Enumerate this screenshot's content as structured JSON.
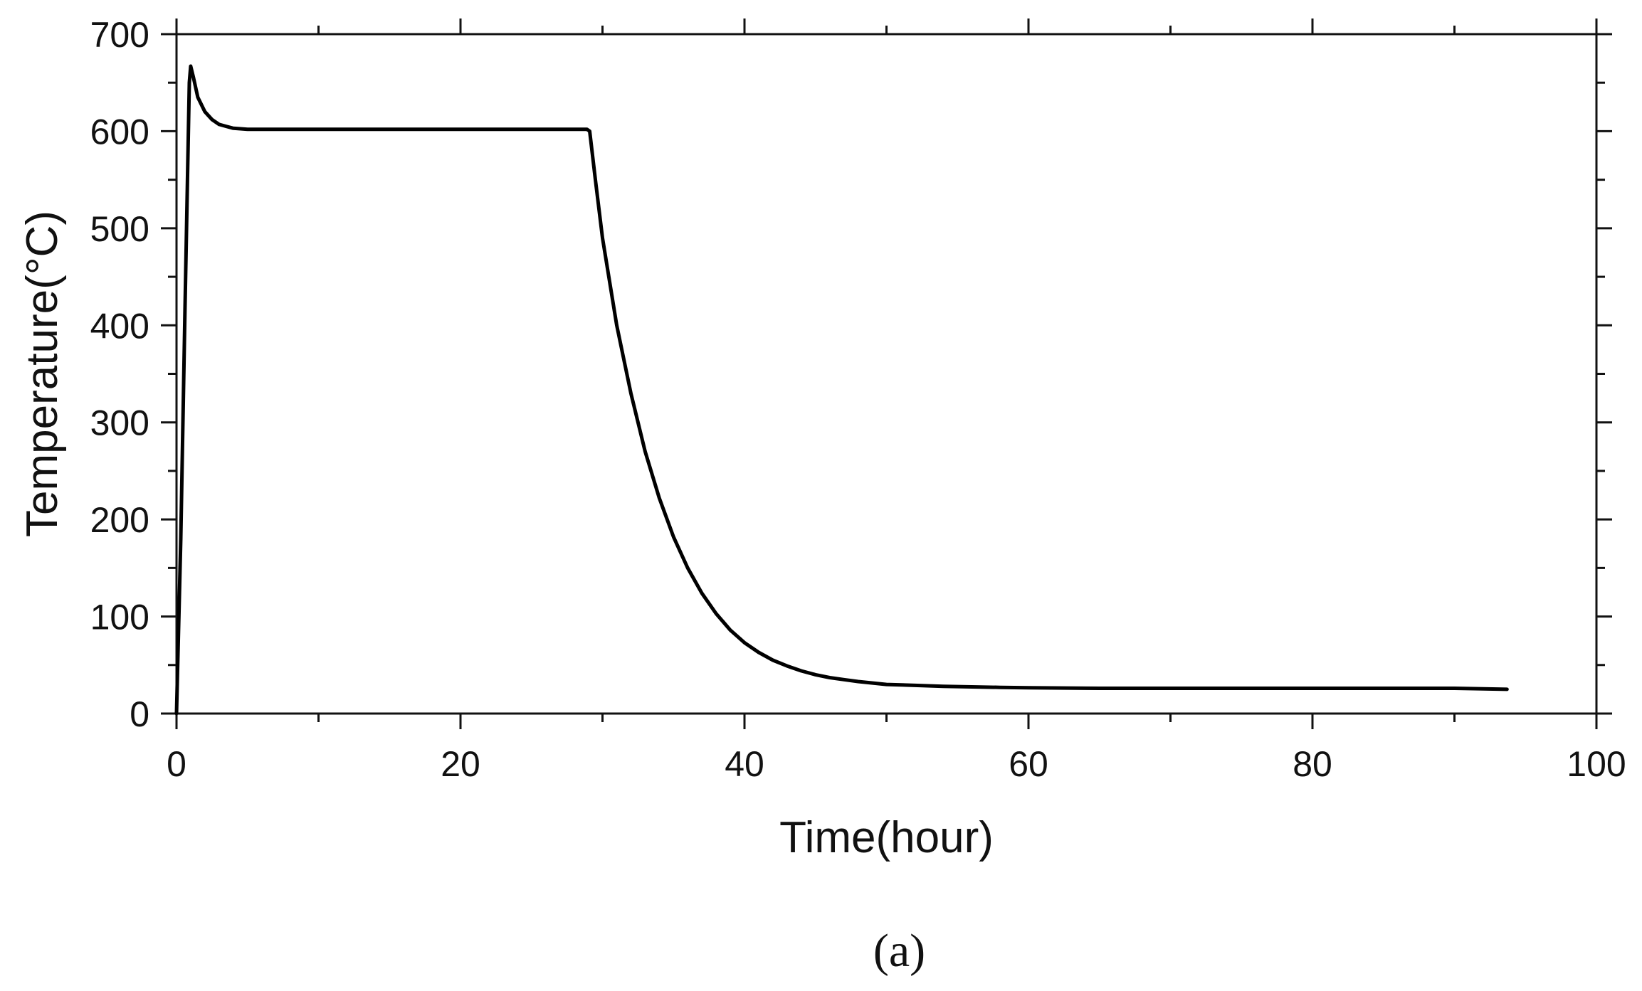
{
  "chart_data": {
    "type": "line",
    "title": "",
    "xlabel": "Time(hour)",
    "ylabel": "Temperature(°C)",
    "panel_label": "(a)",
    "xlim": [
      0,
      100
    ],
    "ylim": [
      0,
      700
    ],
    "x_ticks": [
      "0",
      "20",
      "40",
      "60",
      "80",
      "100"
    ],
    "y_ticks": [
      "0",
      "100",
      "200",
      "300",
      "400",
      "500",
      "600",
      "700"
    ],
    "x_minor_step": 10,
    "y_minor_step": 50,
    "grid": false,
    "legend": "none",
    "line_color": "#000000",
    "series": [
      {
        "x": [
          0,
          0.3,
          0.6,
          0.9,
          1.0,
          1.2,
          1.5,
          2,
          2.5,
          3,
          3.5,
          4,
          5,
          6,
          8,
          10,
          15,
          20,
          25,
          28.9,
          29.1,
          29.5,
          30,
          31,
          32,
          33,
          34,
          35,
          36,
          37,
          38,
          39,
          40,
          41,
          42,
          43,
          44,
          45,
          46,
          47,
          48,
          50,
          52,
          54,
          56,
          58,
          60,
          65,
          70,
          75,
          80,
          85,
          90,
          93.7
        ],
        "y": [
          0,
          180,
          420,
          650,
          667,
          655,
          635,
          620,
          612,
          607,
          605,
          603,
          602,
          602,
          602,
          602,
          602,
          602,
          602,
          602,
          600,
          550,
          490,
          400,
          330,
          270,
          222,
          182,
          150,
          124,
          103,
          86,
          73,
          63,
          55,
          49,
          44,
          40,
          37,
          35,
          33,
          30,
          29,
          28,
          27.5,
          27,
          26.5,
          26,
          26,
          26,
          26,
          26,
          26,
          25
        ]
      }
    ]
  }
}
